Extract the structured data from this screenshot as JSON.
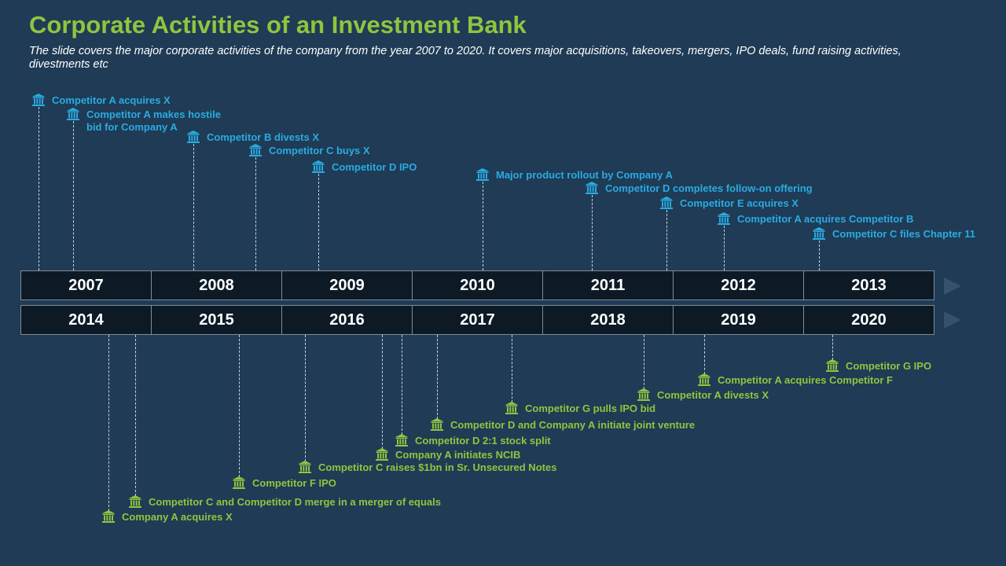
{
  "slide": {
    "title": "Corporate Activities of an Investment Bank",
    "subtitle": "The slide covers the major corporate activities of the company from the year 2007 to 2020. It covers major acquisitions, takeovers, mergers, IPO deals, fund raising activities, divestments etc"
  },
  "timeline": {
    "row1_years": [
      "2007",
      "2008",
      "2009",
      "2010",
      "2011",
      "2012",
      "2013"
    ],
    "row2_years": [
      "2014",
      "2015",
      "2016",
      "2017",
      "2018",
      "2019",
      "2020"
    ],
    "top_events": [
      {
        "label": "Competitor A acquires X",
        "icon": "bank-icon"
      },
      {
        "label": "Competitor A makes hostile\nbid for Company A",
        "icon": "bank-icon"
      },
      {
        "label": "Competitor B divests X",
        "icon": "bank-icon"
      },
      {
        "label": "Competitor C buys X",
        "icon": "bank-icon"
      },
      {
        "label": "Competitor D IPO",
        "icon": "bank-icon"
      },
      {
        "label": "Major product rollout by Company A",
        "icon": "bank-icon"
      },
      {
        "label": "Competitor D completes follow-on offering",
        "icon": "bank-icon"
      },
      {
        "label": "Competitor E acquires X",
        "icon": "bank-icon"
      },
      {
        "label": "Competitor A acquires Competitor B",
        "icon": "bank-icon"
      },
      {
        "label": "Competitor C files Chapter 11",
        "icon": "bank-icon"
      }
    ],
    "bottom_events": [
      {
        "label": "Company A acquires X",
        "icon": "bank-icon"
      },
      {
        "label": "Competitor C and Competitor D merge in a merger of equals",
        "icon": "bank-icon"
      },
      {
        "label": "Competitor F IPO",
        "icon": "bank-icon"
      },
      {
        "label": "Competitor C raises $1bn in Sr. Unsecured Notes",
        "icon": "bank-icon"
      },
      {
        "label": "Company A initiates NCIB",
        "icon": "bank-icon"
      },
      {
        "label": "Competitor D 2:1 stock split",
        "icon": "bank-icon"
      },
      {
        "label": "Competitor D and Company A initiate joint venture",
        "icon": "bank-icon"
      },
      {
        "label": "Competitor G pulls IPO bid",
        "icon": "bank-icon"
      },
      {
        "label": "Competitor A divests X",
        "icon": "bank-icon"
      },
      {
        "label": "Competitor A acquires Competitor F",
        "icon": "bank-icon"
      },
      {
        "label": "Competitor G IPO",
        "icon": "bank-icon"
      }
    ]
  },
  "colors": {
    "background": "#1f3b55",
    "title": "#8dc63f",
    "top_events": "#29abe2",
    "bottom_events": "#8dc63f",
    "year_cell": "#0d1a26"
  }
}
